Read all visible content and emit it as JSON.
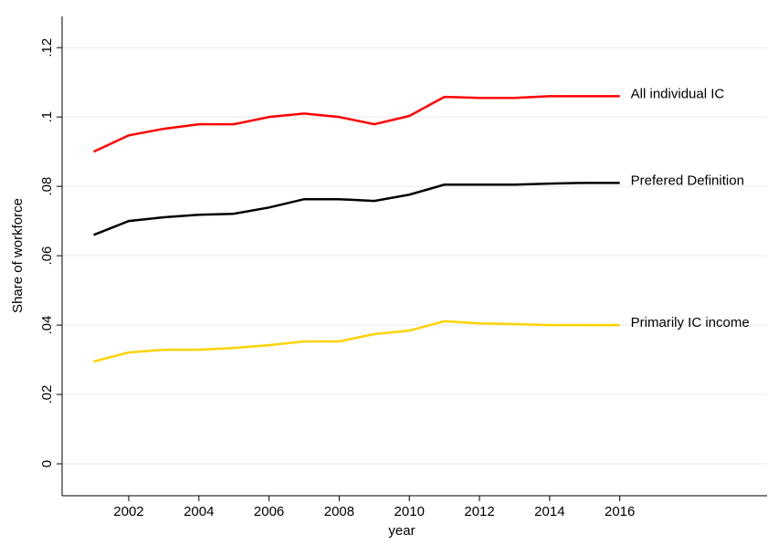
{
  "chart_data": {
    "type": "line",
    "x_label": "year",
    "y_label": "Share of workforce",
    "x": [
      2001,
      2002,
      2003,
      2004,
      2005,
      2006,
      2007,
      2008,
      2009,
      2010,
      2011,
      2012,
      2013,
      2014,
      2015,
      2016
    ],
    "series": [
      {
        "name": "All individual IC",
        "color": "#ff0000",
        "values": [
          0.09,
          0.0947,
          0.0966,
          0.0979,
          0.0979,
          0.1,
          0.101,
          0.1,
          0.0979,
          0.1003,
          0.1058,
          0.1055,
          0.1055,
          0.106,
          0.106,
          0.106
        ]
      },
      {
        "name": "Prefered Definition",
        "color": "#000000",
        "values": [
          0.066,
          0.07,
          0.0711,
          0.0718,
          0.0721,
          0.0739,
          0.0763,
          0.0763,
          0.0758,
          0.0776,
          0.0805,
          0.0805,
          0.0805,
          0.0808,
          0.081,
          0.081
        ]
      },
      {
        "name": "Primarily IC income",
        "color": "#ffd200",
        "values": [
          0.0295,
          0.0321,
          0.0329,
          0.0329,
          0.0334,
          0.0342,
          0.0353,
          0.0353,
          0.0374,
          0.0384,
          0.0411,
          0.0405,
          0.0403,
          0.04,
          0.04,
          0.04
        ]
      }
    ],
    "xlim": [
      2000.1,
      2020.2
    ],
    "xticks": [
      2002,
      2004,
      2006,
      2008,
      2010,
      2012,
      2014,
      2016
    ],
    "ylim": [
      -0.0092,
      0.129
    ],
    "yticks": [
      0,
      {
        "value": 0.02,
        "label": ".02"
      },
      {
        "value": 0.04,
        "label": ".04"
      },
      {
        "value": 0.06,
        "label": ".06"
      },
      {
        "value": 0.08,
        "label": ".08"
      },
      {
        "value": 0.1,
        "label": ".1"
      },
      {
        "value": 0.12,
        "label": ".12"
      }
    ],
    "grid": true
  }
}
